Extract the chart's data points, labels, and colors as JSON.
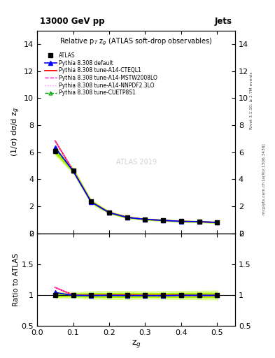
{
  "title_top": "13000 GeV pp",
  "title_right": "Jets",
  "plot_title": "Relative p$_T$ z$_g$ (ATLAS soft-drop observables)",
  "xlabel": "z$_g$",
  "ylabel_main": "(1/σ) dσ/d z$_g$",
  "ylabel_ratio": "Ratio to ATLAS",
  "watermark": "ATLAS 2019",
  "xdata": [
    0.05,
    0.1,
    0.15,
    0.2,
    0.25,
    0.3,
    0.35,
    0.4,
    0.45,
    0.5
  ],
  "atlas_y": [
    6.1,
    4.65,
    2.35,
    1.55,
    1.2,
    1.05,
    0.98,
    0.9,
    0.88,
    0.82
  ],
  "atlas_yerr": [
    0.15,
    0.1,
    0.07,
    0.05,
    0.04,
    0.03,
    0.03,
    0.03,
    0.03,
    0.03
  ],
  "pythia_default_y": [
    6.35,
    4.62,
    2.33,
    1.54,
    1.19,
    1.04,
    0.97,
    0.895,
    0.875,
    0.815
  ],
  "pythia_cteql1_y": [
    6.85,
    4.65,
    2.34,
    1.55,
    1.2,
    1.045,
    0.975,
    0.9,
    0.875,
    0.815
  ],
  "pythia_mstw_y": [
    6.85,
    4.64,
    2.33,
    1.54,
    1.19,
    1.04,
    0.965,
    0.89,
    0.87,
    0.81
  ],
  "pythia_nnpdf_y": [
    6.85,
    4.64,
    2.33,
    1.54,
    1.19,
    1.04,
    0.965,
    0.89,
    0.87,
    0.81
  ],
  "pythia_cuetp_y": [
    6.3,
    4.62,
    2.33,
    1.54,
    1.19,
    1.04,
    0.97,
    0.895,
    0.875,
    0.815
  ],
  "color_atlas": "#000000",
  "color_default": "#0000ff",
  "color_cteql1": "#ff0000",
  "color_mstw": "#ff00cc",
  "color_nnpdf": "#ff88ff",
  "color_cuetp": "#00aa00",
  "band_inner_color": "#aaee00",
  "band_outer_color": "#ddff99",
  "ylim_main": [
    0,
    15
  ],
  "ylim_ratio": [
    0.5,
    2.0
  ],
  "xlim": [
    0.0,
    0.55
  ],
  "yticks_main": [
    0,
    2,
    4,
    6,
    8,
    10,
    12,
    14
  ],
  "yticks_ratio": [
    0.5,
    1.0,
    1.5,
    2.0
  ],
  "right_label1": "Rivet 3.1.10, ≥ 2.7M events",
  "right_label2": "mcplots.cern.ch [arXiv:1306.3436]"
}
